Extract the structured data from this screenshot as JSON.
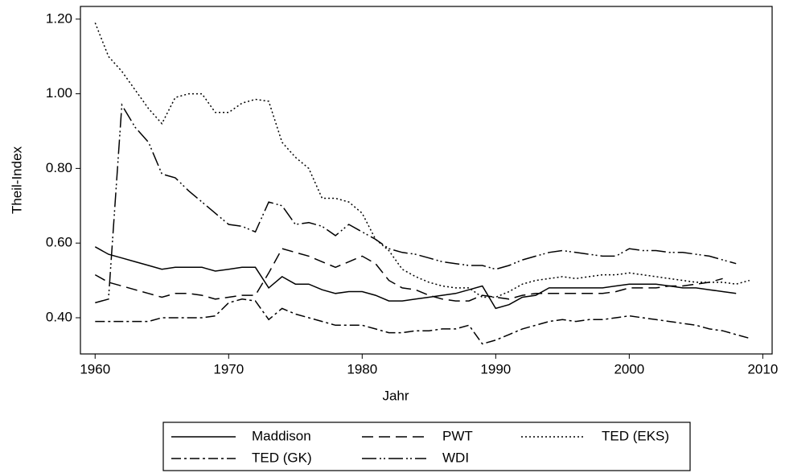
{
  "chart_data": {
    "type": "line",
    "xlabel": "Jahr",
    "ylabel": "Theil-Index",
    "x": [
      1960,
      1961,
      1962,
      1963,
      1964,
      1965,
      1966,
      1967,
      1968,
      1969,
      1970,
      1971,
      1972,
      1973,
      1974,
      1975,
      1976,
      1977,
      1978,
      1979,
      1980,
      1981,
      1982,
      1983,
      1984,
      1985,
      1986,
      1987,
      1988,
      1989,
      1990,
      1991,
      1992,
      1993,
      1994,
      1995,
      1996,
      1997,
      1998,
      1999,
      2000,
      2001,
      2002,
      2003,
      2004,
      2005,
      2006,
      2007,
      2008,
      2009
    ],
    "xlim": [
      1958.9,
      2010.7
    ],
    "xticks": [
      1960,
      1970,
      1980,
      1990,
      2000,
      2010
    ],
    "ylim": [
      0.303,
      1.234
    ],
    "yticks": [
      {
        "value": 0.4,
        "label": "0.40"
      },
      {
        "value": 0.6,
        "label": "0.60"
      },
      {
        "value": 0.8,
        "label": "0.80"
      },
      {
        "value": 1.0,
        "label": "1.00"
      },
      {
        "value": 1.2,
        "label": "1.20"
      }
    ],
    "grid": false,
    "legend": "bottom",
    "series": [
      {
        "name": "Maddison",
        "color": "#000000",
        "dash": "solid",
        "values": [
          0.59,
          0.57,
          0.56,
          0.55,
          0.54,
          0.53,
          0.535,
          0.535,
          0.535,
          0.525,
          0.53,
          0.535,
          0.535,
          0.48,
          0.51,
          0.49,
          0.49,
          0.475,
          0.465,
          0.47,
          0.47,
          0.46,
          0.445,
          0.445,
          0.45,
          0.455,
          0.46,
          0.465,
          0.475,
          0.485,
          0.425,
          0.435,
          0.455,
          0.46,
          0.48,
          0.48,
          0.48,
          0.48,
          0.48,
          0.485,
          0.49,
          0.49,
          0.49,
          0.485,
          0.48,
          0.48,
          0.475,
          0.47,
          0.465,
          null
        ]
      },
      {
        "name": "PWT",
        "color": "#000000",
        "dash": "dash",
        "values": [
          0.515,
          0.495,
          0.485,
          0.475,
          0.465,
          0.455,
          0.465,
          0.465,
          0.46,
          0.45,
          0.455,
          0.46,
          0.46,
          0.52,
          0.585,
          0.575,
          0.565,
          0.55,
          0.535,
          0.55,
          0.565,
          0.545,
          0.5,
          0.48,
          0.475,
          0.46,
          0.45,
          0.445,
          0.445,
          0.46,
          0.455,
          0.45,
          0.46,
          0.465,
          0.465,
          0.465,
          0.465,
          0.465,
          0.465,
          0.47,
          0.48,
          0.48,
          0.48,
          0.485,
          0.485,
          0.49,
          0.495,
          0.505,
          null,
          null
        ]
      },
      {
        "name": "TED (EKS)",
        "color": "#000000",
        "dash": "dot",
        "values": [
          1.19,
          1.1,
          1.06,
          1.01,
          0.96,
          0.92,
          0.99,
          1.0,
          1.0,
          0.95,
          0.95,
          0.975,
          0.985,
          0.98,
          0.87,
          0.83,
          0.8,
          0.72,
          0.72,
          0.71,
          0.68,
          0.61,
          0.58,
          0.53,
          0.51,
          0.495,
          0.485,
          0.48,
          0.48,
          0.455,
          0.455,
          0.47,
          0.49,
          0.5,
          0.505,
          0.51,
          0.505,
          0.51,
          0.515,
          0.515,
          0.52,
          0.515,
          0.51,
          0.505,
          0.5,
          0.495,
          0.495,
          0.495,
          0.49,
          0.5
        ]
      },
      {
        "name": "TED (GK)",
        "color": "#000000",
        "dash": "dash-dot",
        "values": [
          0.39,
          0.39,
          0.39,
          0.39,
          0.39,
          0.4,
          0.4,
          0.4,
          0.4,
          0.405,
          0.44,
          0.45,
          0.445,
          0.395,
          0.425,
          0.41,
          0.4,
          0.39,
          0.38,
          0.38,
          0.38,
          0.37,
          0.36,
          0.36,
          0.365,
          0.365,
          0.37,
          0.37,
          0.38,
          0.33,
          0.34,
          0.355,
          0.37,
          0.38,
          0.39,
          0.395,
          0.39,
          0.395,
          0.395,
          0.4,
          0.405,
          0.4,
          0.395,
          0.39,
          0.385,
          0.38,
          0.37,
          0.365,
          0.355,
          0.345
        ]
      },
      {
        "name": "WDI",
        "color": "#000000",
        "dash": "long-dash-dot-dot",
        "values": [
          0.44,
          0.45,
          0.97,
          0.91,
          0.87,
          0.785,
          0.775,
          0.74,
          0.71,
          0.68,
          0.65,
          0.645,
          0.63,
          0.71,
          0.7,
          0.65,
          0.655,
          0.645,
          0.62,
          0.65,
          0.63,
          0.61,
          0.585,
          0.575,
          0.57,
          0.56,
          0.55,
          0.545,
          0.54,
          0.54,
          0.53,
          0.54,
          0.555,
          0.565,
          0.575,
          0.58,
          0.575,
          0.57,
          0.565,
          0.565,
          0.585,
          0.58,
          0.58,
          0.575,
          0.575,
          0.57,
          0.565,
          0.555,
          0.545,
          null
        ]
      }
    ]
  }
}
